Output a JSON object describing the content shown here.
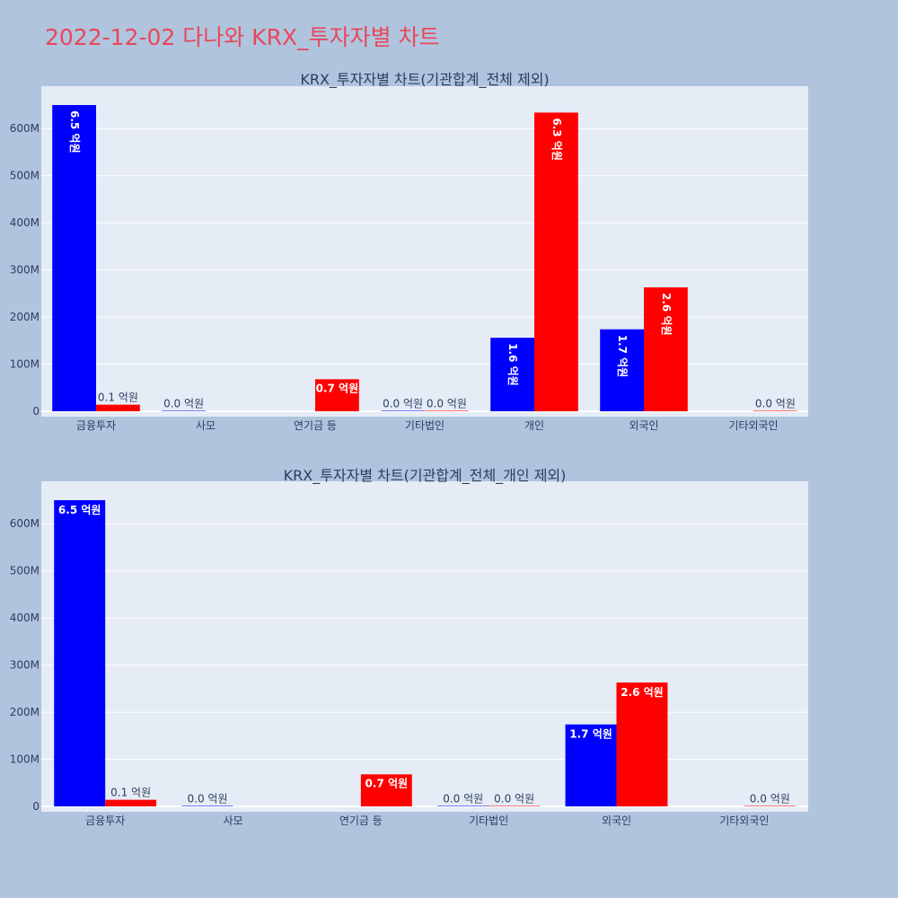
{
  "page_title": "2022-12-02 다나와 KRX_투자자별 차트",
  "colors": {
    "buy": "#0000ff",
    "sell": "#ff0000",
    "plot_bg": "#e5ecf6",
    "page_bg": "#b0c4de",
    "title": "#e8485a"
  },
  "chart_data": [
    {
      "type": "bar",
      "title": "KRX_투자자별 차트(기관합계_전체 제외)",
      "categories": [
        "금융투자",
        "사모",
        "연기금 등",
        "기타법인",
        "개인",
        "외국인",
        "기타외국인"
      ],
      "series": [
        {
          "color": "#0000ff",
          "values": [
            650000000,
            1000000,
            0,
            1000000,
            156000000,
            174000000,
            0
          ],
          "labels": [
            "6.5 억원",
            "0.0 억원",
            "",
            "0.0 억원",
            "1.6 억원",
            "1.7 억원",
            ""
          ]
        },
        {
          "color": "#ff0000",
          "values": [
            14000000,
            0,
            68000000,
            1000000,
            634000000,
            263000000,
            1000000
          ],
          "labels": [
            "0.1 억원",
            "",
            "0.7 억원",
            "0.0 억원",
            "6.3 억원",
            "2.6 억원",
            "0.0 억원"
          ]
        }
      ],
      "ylim": [
        0,
        690000000
      ],
      "yticks": [
        0,
        100000000,
        200000000,
        300000000,
        400000000,
        500000000,
        600000000
      ],
      "ytick_labels": [
        "0",
        "100M",
        "200M",
        "300M",
        "400M",
        "500M",
        "600M"
      ],
      "grid": true,
      "label_orientation": "vertical"
    },
    {
      "type": "bar",
      "title": "KRX_투자자별 차트(기관합계_전체_개인 제외)",
      "categories": [
        "금융투자",
        "사모",
        "연기금 등",
        "기타법인",
        "외국인",
        "기타외국인"
      ],
      "series": [
        {
          "color": "#0000ff",
          "values": [
            650000000,
            1000000,
            0,
            1000000,
            174000000,
            0
          ],
          "labels": [
            "6.5 억원",
            "0.0 억원",
            "",
            "0.0 억원",
            "1.7 억원",
            ""
          ]
        },
        {
          "color": "#ff0000",
          "values": [
            14000000,
            0,
            68000000,
            1000000,
            263000000,
            1000000
          ],
          "labels": [
            "0.1 억원",
            "",
            "0.7 억원",
            "0.0 억원",
            "2.6 억원",
            "0.0 억원"
          ]
        }
      ],
      "ylim": [
        0,
        690000000
      ],
      "yticks": [
        0,
        100000000,
        200000000,
        300000000,
        400000000,
        500000000,
        600000000
      ],
      "ytick_labels": [
        "0",
        "100M",
        "200M",
        "300M",
        "400M",
        "500M",
        "600M"
      ],
      "grid": true,
      "label_orientation": "horizontal"
    }
  ]
}
